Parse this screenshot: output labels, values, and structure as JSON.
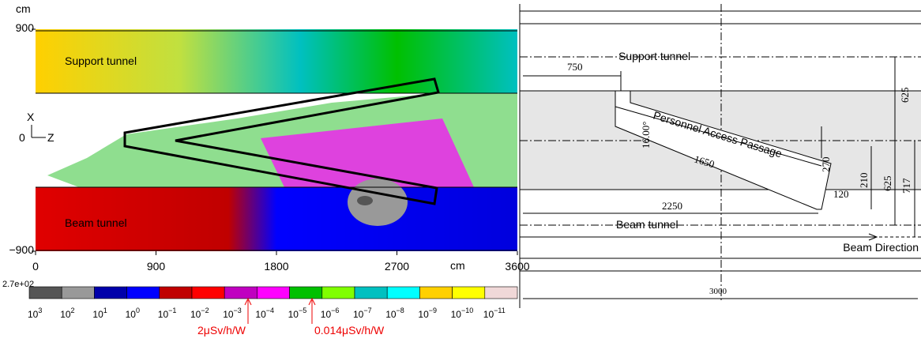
{
  "figure": {
    "dose_map": {
      "y_unit": "cm",
      "x_unit": "cm",
      "xlim": [
        0,
        3600
      ],
      "xticks": [
        0,
        900,
        1800,
        2700,
        3600
      ],
      "ylim": [
        -900,
        900
      ],
      "yticks": [
        {
          "value": -900,
          "label": "−900"
        },
        900
      ],
      "support_label": "Support tunnel",
      "beam_label": "Beam tunnel",
      "axes_icon": {
        "x": "X",
        "origin": "0",
        "z": "Z"
      }
    },
    "colorbar": {
      "max_label": "2.7e+02",
      "colors": [
        "#555555",
        "#999999",
        "#0000aa",
        "#0000ff",
        "#c00000",
        "#ff0000",
        "#c000c0",
        "#ff00ff",
        "#00c000",
        "#80ff00",
        "#00c0c0",
        "#00ffff",
        "#ffd000",
        "#ffff00",
        "#f0d8d8"
      ],
      "ticks": [
        {
          "base": "10",
          "exponent": "3"
        },
        {
          "base": "10",
          "exponent": "2"
        },
        {
          "base": "10",
          "exponent": "1"
        },
        {
          "base": "10",
          "exponent": "0"
        },
        {
          "base": "10",
          "exponent": "−1"
        },
        {
          "base": "10",
          "exponent": "−2"
        },
        {
          "base": "10",
          "exponent": "−3"
        },
        {
          "base": "10",
          "exponent": "−4"
        },
        {
          "base": "10",
          "exponent": "−5"
        },
        {
          "base": "10",
          "exponent": "−6"
        },
        {
          "base": "10",
          "exponent": "−7"
        },
        {
          "base": "10",
          "exponent": "−8"
        },
        {
          "base": "10",
          "exponent": "−9"
        },
        {
          "base": "10",
          "exponent": "−10"
        },
        {
          "base": "10",
          "exponent": "−11"
        }
      ],
      "markers": [
        "2μSv/h/W",
        "0.014μSv/h/W"
      ]
    },
    "drawing": {
      "dim_750": "750",
      "support_tunnel": "Support tunnel",
      "dim_625_top": "625",
      "dim_625_bottom": "625",
      "dim_717": "717",
      "angle": "16.00°",
      "passage": "Personnel Access Passage",
      "dim_270": "270",
      "dim_210": "210",
      "dim_1650": "1650",
      "dim_120": "120",
      "dim_2250": "2250",
      "beam_tunnel": "Beam tunnel",
      "beam_direction": "Beam Direction",
      "dim_3000": "3000"
    }
  }
}
